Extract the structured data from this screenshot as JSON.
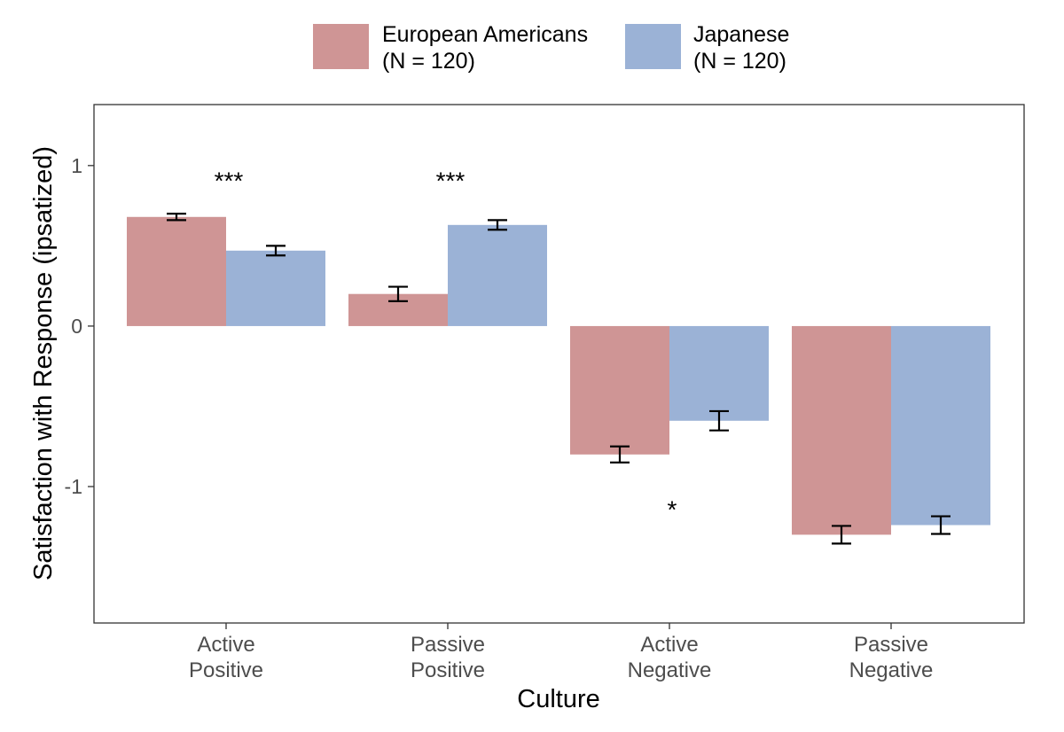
{
  "chart_data": {
    "type": "bar",
    "xlabel": "Culture",
    "ylabel": "Satisfaction with Response (ipsatized)",
    "ylim": [
      -1.85,
      1.38
    ],
    "y_ticks": [
      1,
      0,
      -1
    ],
    "y_tick_labels": [
      "1",
      "0",
      "-1"
    ],
    "categories": [
      [
        "Active",
        "Positive"
      ],
      [
        "Passive",
        "Positive"
      ],
      [
        "Active",
        "Negative"
      ],
      [
        "Passive",
        "Negative"
      ]
    ],
    "series": [
      {
        "name": [
          "European Americans",
          "(N = 120)"
        ],
        "color": "#cf9595",
        "values": [
          0.68,
          0.2,
          -0.8,
          -1.3
        ],
        "error": [
          0.02,
          0.045,
          0.05,
          0.055
        ]
      },
      {
        "name": [
          "Japanese",
          "(N = 120)"
        ],
        "color": "#9bb2d6",
        "values": [
          0.47,
          0.63,
          -0.59,
          -1.24
        ],
        "error": [
          0.03,
          0.03,
          0.06,
          0.055
        ]
      }
    ],
    "annotations": [
      {
        "text": "***",
        "category": 0,
        "y": 0.92
      },
      {
        "text": "***",
        "category": 1,
        "y": 0.92
      },
      {
        "text": "*",
        "category": 2,
        "y": -1.13
      }
    ],
    "legend_position": "top",
    "grid": false
  }
}
